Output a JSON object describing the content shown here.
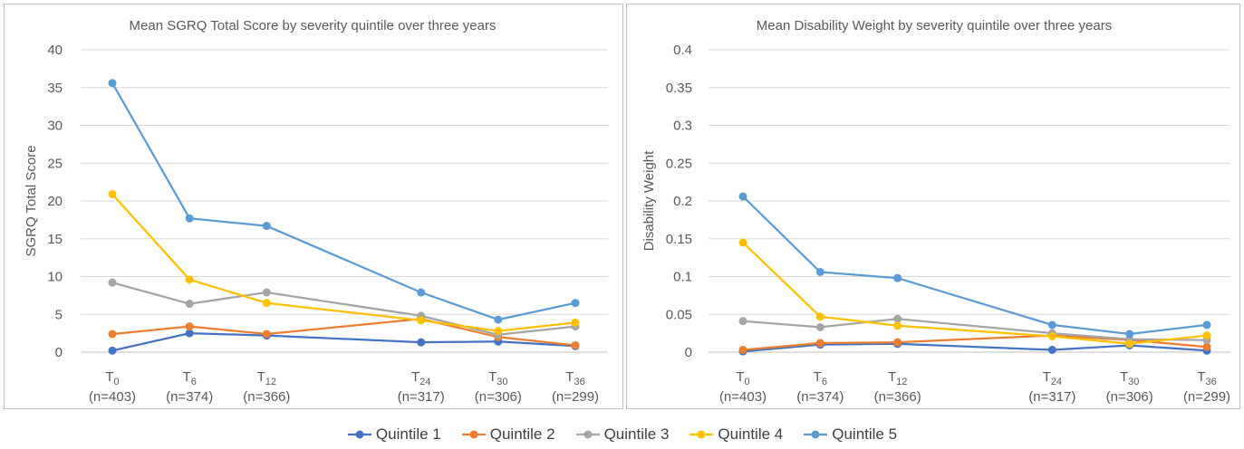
{
  "colors": [
    "#4472C4",
    "#ED7D31",
    "#A5A5A5",
    "#FFC000",
    "#5B9BD5"
  ],
  "legend": [
    "Quintile 1",
    "Quintile 2",
    "Quintile 3",
    "Quintile 4",
    "Quintile 5"
  ],
  "chart_data": [
    {
      "type": "line",
      "title": "Mean SGRQ Total Score by severity quintile over three years",
      "xlabel": "",
      "ylabel": "SGRQ Total Score",
      "x": [
        0,
        6,
        12,
        24,
        30,
        36
      ],
      "categories": [
        {
          "base": "T",
          "sub": "0",
          "n": "(n=403)"
        },
        {
          "base": "T",
          "sub": "6",
          "n": "(n=374)"
        },
        {
          "base": "T",
          "sub": "12",
          "n": "(n=366)"
        },
        {
          "base": "T",
          "sub": "24",
          "n": "(n=317)"
        },
        {
          "base": "T",
          "sub": "30",
          "n": "(n=306)"
        },
        {
          "base": "T",
          "sub": "36",
          "n": "(n=299)"
        }
      ],
      "ylim": [
        0,
        40
      ],
      "yticks": [
        "0",
        "5",
        "10",
        "15",
        "20",
        "25",
        "30",
        "35",
        "40"
      ],
      "ytick_values": [
        0,
        5,
        10,
        15,
        20,
        25,
        30,
        35,
        40
      ],
      "grid": true,
      "legend_position": "bottom",
      "series": [
        {
          "name": "Quintile 1",
          "values": [
            0.2,
            2.5,
            2.2,
            1.3,
            1.4,
            0.8
          ]
        },
        {
          "name": "Quintile 2",
          "values": [
            2.4,
            3.4,
            2.4,
            4.4,
            2.0,
            0.9
          ]
        },
        {
          "name": "Quintile 3",
          "values": [
            9.2,
            6.4,
            7.9,
            4.8,
            2.3,
            3.4
          ]
        },
        {
          "name": "Quintile 4",
          "values": [
            20.9,
            9.6,
            6.5,
            4.2,
            2.8,
            3.9
          ]
        },
        {
          "name": "Quintile 5",
          "values": [
            35.6,
            17.7,
            16.7,
            7.9,
            4.3,
            6.5
          ]
        }
      ]
    },
    {
      "type": "line",
      "title": "Mean Disability Weight by severity quintile over three years",
      "xlabel": "",
      "ylabel": "Disability Weight",
      "x": [
        0,
        6,
        12,
        24,
        30,
        36
      ],
      "categories": [
        {
          "base": "T",
          "sub": "0",
          "n": "(n=403)"
        },
        {
          "base": "T",
          "sub": "6",
          "n": "(n=374)"
        },
        {
          "base": "T",
          "sub": "12",
          "n": "(n=366)"
        },
        {
          "base": "T",
          "sub": "24",
          "n": "(n=317)"
        },
        {
          "base": "T",
          "sub": "30",
          "n": "(n=306)"
        },
        {
          "base": "T",
          "sub": "36",
          "n": "(n=299)"
        }
      ],
      "ylim": [
        0,
        0.4
      ],
      "yticks": [
        "0",
        "0.05",
        "0.1",
        "0.15",
        "0.2",
        "0.25",
        "0.3",
        "0.35",
        "0.4"
      ],
      "ytick_values": [
        0,
        0.05,
        0.1,
        0.15,
        0.2,
        0.25,
        0.3,
        0.35,
        0.4
      ],
      "grid": true,
      "legend_position": "bottom",
      "series": [
        {
          "name": "Quintile 1",
          "values": [
            0.001,
            0.01,
            0.011,
            0.003,
            0.009,
            0.002
          ]
        },
        {
          "name": "Quintile 2",
          "values": [
            0.003,
            0.012,
            0.013,
            0.022,
            0.016,
            0.007
          ]
        },
        {
          "name": "Quintile 3",
          "values": [
            0.041,
            0.033,
            0.044,
            0.025,
            0.017,
            0.016
          ]
        },
        {
          "name": "Quintile 4",
          "values": [
            0.145,
            0.047,
            0.035,
            0.021,
            0.011,
            0.022
          ]
        },
        {
          "name": "Quintile 5",
          "values": [
            0.206,
            0.106,
            0.098,
            0.036,
            0.024,
            0.036
          ]
        }
      ]
    }
  ]
}
